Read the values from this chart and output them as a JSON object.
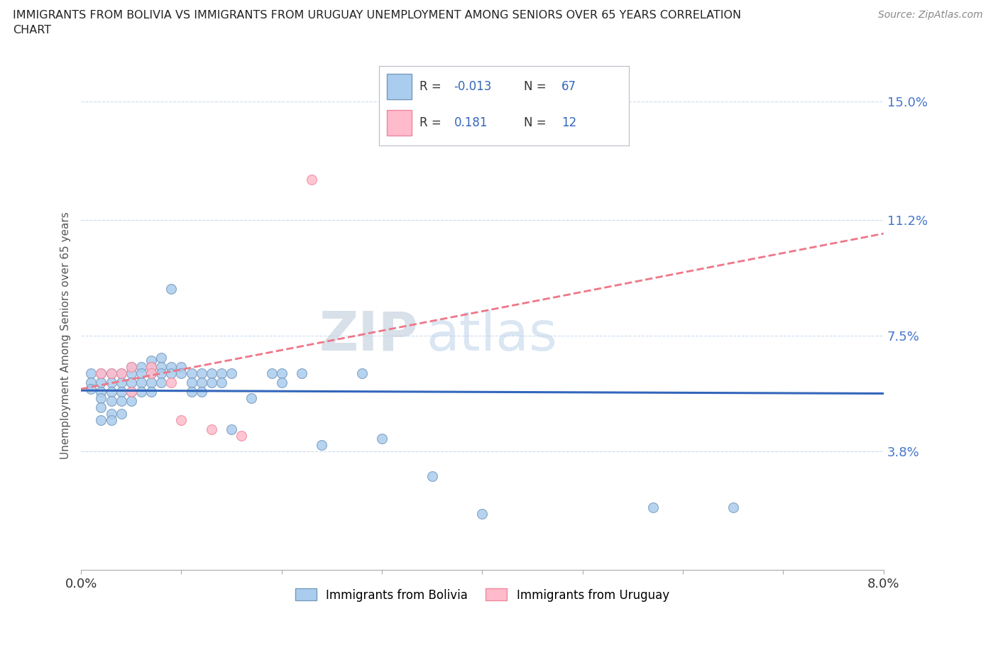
{
  "title": "IMMIGRANTS FROM BOLIVIA VS IMMIGRANTS FROM URUGUAY UNEMPLOYMENT AMONG SENIORS OVER 65 YEARS CORRELATION\nCHART",
  "source": "Source: ZipAtlas.com",
  "ylabel": "Unemployment Among Seniors over 65 years",
  "xlim": [
    0.0,
    0.08
  ],
  "ylim": [
    0.0,
    0.15
  ],
  "ytick_positions": [
    0.0,
    0.038,
    0.075,
    0.112,
    0.15
  ],
  "ytick_labels": [
    "",
    "3.8%",
    "7.5%",
    "11.2%",
    "15.0%"
  ],
  "bolivia_color": "#aaccee",
  "bolivia_edge": "#7799bb",
  "uruguay_color": "#ffbbcc",
  "uruguay_edge": "#ee8899",
  "bolivia_line_color": "#3366bb",
  "uruguay_line_color": "#ee7788",
  "bolivia_r": -0.013,
  "bolivia_n": 67,
  "uruguay_r": 0.181,
  "uruguay_n": 12,
  "bolivia_scatter": [
    [
      0.001,
      0.063
    ],
    [
      0.001,
      0.06
    ],
    [
      0.001,
      0.058
    ],
    [
      0.002,
      0.063
    ],
    [
      0.002,
      0.06
    ],
    [
      0.002,
      0.057
    ],
    [
      0.002,
      0.055
    ],
    [
      0.002,
      0.052
    ],
    [
      0.002,
      0.048
    ],
    [
      0.003,
      0.063
    ],
    [
      0.003,
      0.06
    ],
    [
      0.003,
      0.057
    ],
    [
      0.003,
      0.054
    ],
    [
      0.003,
      0.05
    ],
    [
      0.003,
      0.048
    ],
    [
      0.004,
      0.063
    ],
    [
      0.004,
      0.06
    ],
    [
      0.004,
      0.057
    ],
    [
      0.004,
      0.054
    ],
    [
      0.004,
      0.05
    ],
    [
      0.005,
      0.065
    ],
    [
      0.005,
      0.063
    ],
    [
      0.005,
      0.06
    ],
    [
      0.005,
      0.057
    ],
    [
      0.005,
      0.054
    ],
    [
      0.006,
      0.065
    ],
    [
      0.006,
      0.063
    ],
    [
      0.006,
      0.06
    ],
    [
      0.006,
      0.057
    ],
    [
      0.007,
      0.067
    ],
    [
      0.007,
      0.065
    ],
    [
      0.007,
      0.063
    ],
    [
      0.007,
      0.06
    ],
    [
      0.007,
      0.057
    ],
    [
      0.008,
      0.068
    ],
    [
      0.008,
      0.065
    ],
    [
      0.008,
      0.063
    ],
    [
      0.008,
      0.06
    ],
    [
      0.009,
      0.09
    ],
    [
      0.009,
      0.065
    ],
    [
      0.009,
      0.063
    ],
    [
      0.01,
      0.065
    ],
    [
      0.01,
      0.063
    ],
    [
      0.011,
      0.063
    ],
    [
      0.011,
      0.06
    ],
    [
      0.011,
      0.057
    ],
    [
      0.012,
      0.063
    ],
    [
      0.012,
      0.06
    ],
    [
      0.012,
      0.057
    ],
    [
      0.013,
      0.063
    ],
    [
      0.013,
      0.06
    ],
    [
      0.014,
      0.063
    ],
    [
      0.014,
      0.06
    ],
    [
      0.015,
      0.045
    ],
    [
      0.015,
      0.063
    ],
    [
      0.017,
      0.055
    ],
    [
      0.019,
      0.063
    ],
    [
      0.02,
      0.063
    ],
    [
      0.02,
      0.06
    ],
    [
      0.022,
      0.063
    ],
    [
      0.024,
      0.04
    ],
    [
      0.028,
      0.063
    ],
    [
      0.03,
      0.042
    ],
    [
      0.035,
      0.03
    ],
    [
      0.04,
      0.018
    ],
    [
      0.057,
      0.02
    ],
    [
      0.065,
      0.02
    ]
  ],
  "uruguay_scatter": [
    [
      0.002,
      0.063
    ],
    [
      0.003,
      0.063
    ],
    [
      0.004,
      0.063
    ],
    [
      0.005,
      0.065
    ],
    [
      0.005,
      0.057
    ],
    [
      0.007,
      0.065
    ],
    [
      0.007,
      0.063
    ],
    [
      0.009,
      0.06
    ],
    [
      0.01,
      0.048
    ],
    [
      0.013,
      0.045
    ],
    [
      0.016,
      0.043
    ],
    [
      0.023,
      0.125
    ]
  ],
  "grid_color": "#ccddee",
  "watermark_zip": "ZIP",
  "watermark_atlas": "atlas",
  "legend_bolivia_label": "Immigrants from Bolivia",
  "legend_uruguay_label": "Immigrants from Uruguay"
}
